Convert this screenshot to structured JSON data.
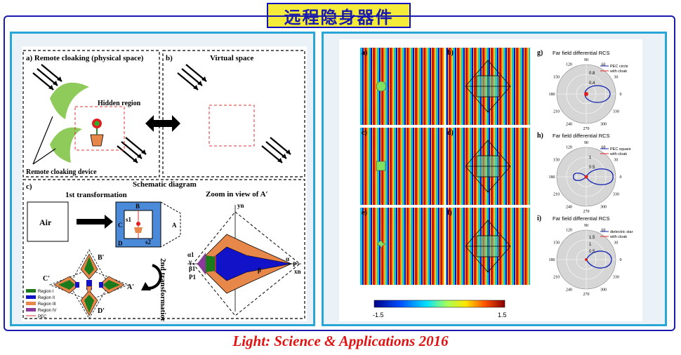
{
  "header": {
    "title": "远程隐身器件"
  },
  "left_figure": {
    "panel_a_title": "a) Remote cloaking (physical space)",
    "panel_b_title": "b)",
    "panel_b_label": "Virtual space",
    "hidden_region": "Hidden region",
    "remote_device": "Remote cloaking device",
    "panel_c_title": "c)",
    "schematic": "Schematic diagram",
    "first_transform": "1st  transformation",
    "air": "Air",
    "zoom": "Zoom in view of A′",
    "second_transform": "2nd transformation",
    "labels": {
      "B": "B",
      "C": "C",
      "D": "D",
      "A": "A",
      "s1": "s1",
      "s2": "s2",
      "Bp": "B′",
      "Cp": "C′",
      "Dp": "D′",
      "Ap": "A′",
      "yn": "yn",
      "xn": "xn",
      "P": "P",
      "P1": "P1",
      "alpha": "α",
      "alpha1": "α1",
      "gamma": "γ",
      "beta1": "β1",
      "beta": "β"
    },
    "legend": [
      "Region I",
      "Region II",
      "Region III",
      "Region IV",
      "PEC"
    ]
  },
  "right_figure": {
    "panel_labels": [
      "a)",
      "b)",
      "c)",
      "d)",
      "e)",
      "f)"
    ],
    "colorbar": {
      "min": "-1.5",
      "max": "1.5"
    },
    "polar_plots": [
      {
        "label": "g)",
        "title": "Far field differential RCS",
        "legend": [
          "PEC circle",
          "with cloak"
        ],
        "radial_ticks": [
          "0.4",
          "0.8"
        ]
      },
      {
        "label": "h)",
        "title": "Far field differential RCS",
        "legend": [
          "PEC square",
          "with cloak"
        ],
        "radial_ticks": [
          "0.5",
          "1"
        ]
      },
      {
        "label": "i)",
        "title": "Far field differential RCS",
        "legend": [
          "dielectric star",
          "with cloak"
        ],
        "radial_ticks": [
          "0.5",
          "1",
          "1.5"
        ]
      }
    ],
    "angle_ticks": [
      "90",
      "60",
      "30",
      "0",
      "330",
      "300",
      "270",
      "240",
      "210",
      "180",
      "150",
      "120"
    ]
  },
  "footer": {
    "citation": "Light: Science & Applications 2016"
  },
  "colors": {
    "title_bg": "#f4ec39",
    "frame": "#1a1ab0",
    "panel_border": "#2aa6d6",
    "footer": "#e01212",
    "region1": "#1b7a1b",
    "region2": "#1212c8",
    "region3": "#e8874a",
    "region4": "#8a3a9a"
  }
}
